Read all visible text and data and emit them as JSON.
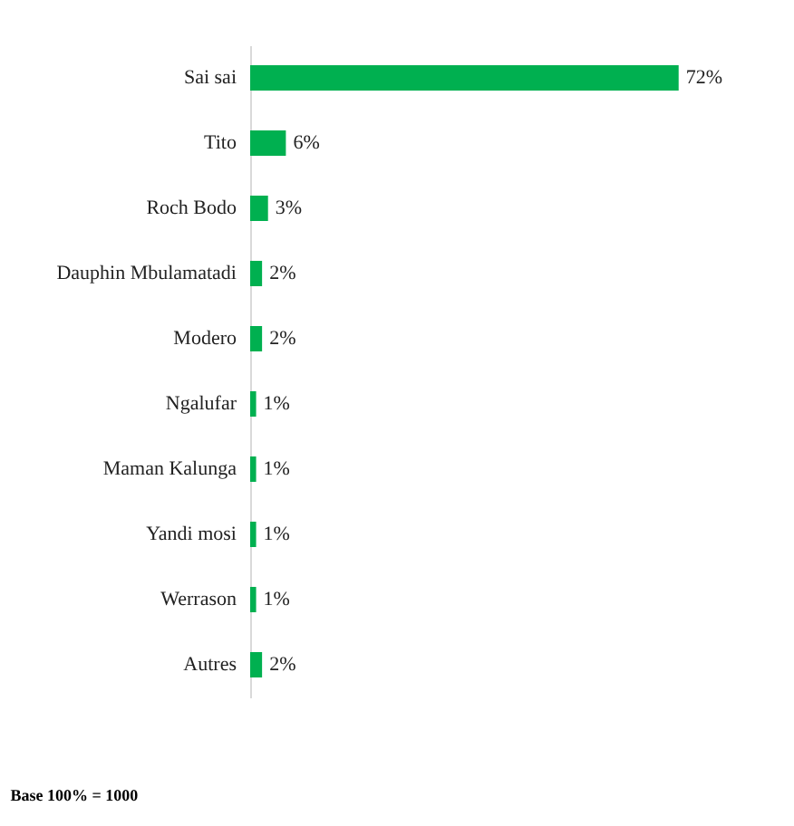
{
  "chart_data": {
    "type": "bar",
    "orientation": "horizontal",
    "tick_labels": "y",
    "categories": [
      "Sai sai",
      "Tito",
      "Roch Bodo",
      "Dauphin Mbulamatadi",
      "Modero",
      "Ngalufar",
      "Maman Kalunga",
      "Yandi mosi",
      "Werrason",
      "Autres"
    ],
    "values": [
      72,
      6,
      3,
      2,
      2,
      1,
      1,
      1,
      1,
      2
    ],
    "value_labels": [
      "72%",
      "6%",
      "3%",
      "2%",
      "2%",
      "1%",
      "1%",
      "1%",
      "1%",
      "2%"
    ],
    "color": "#00b050",
    "annotations": [
      "Base 100% = 1000"
    ]
  }
}
